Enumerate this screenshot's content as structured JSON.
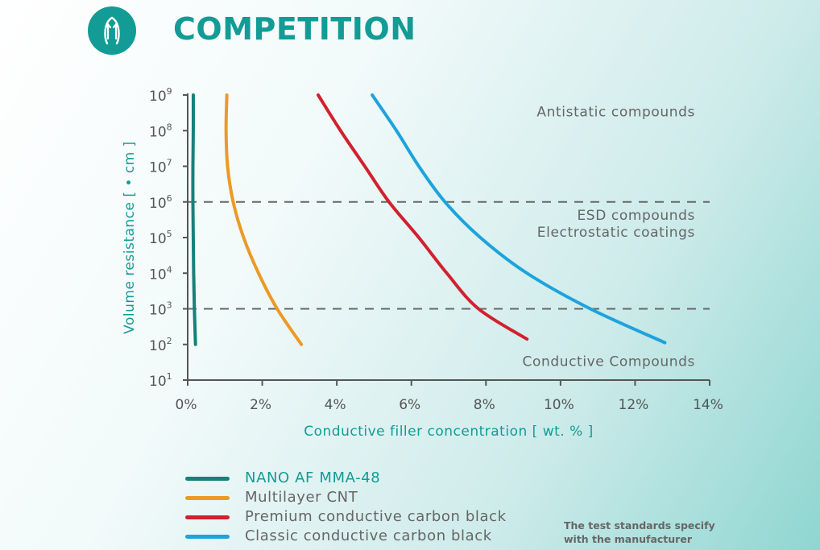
{
  "header": {
    "title": "COMPETITION"
  },
  "note": {
    "lines": [
      "The test standards specify",
      "with the manufacturer"
    ]
  },
  "colors": {
    "accent": "#129c95",
    "axis": "#555555",
    "grid_dash": "#666666",
    "region_text": "#666666"
  },
  "chart_data": {
    "type": "line",
    "title": "",
    "xlabel": "Conductive filler concentration [ wt. % ]",
    "ylabel": "Volume resistance [  • cm ]",
    "xlim": [
      0,
      14
    ],
    "ylim_log10": [
      1,
      9
    ],
    "y_scale": "log",
    "x_ticks": [
      {
        "value": 0,
        "label": "0%"
      },
      {
        "value": 2,
        "label": "2%"
      },
      {
        "value": 4,
        "label": "4%"
      },
      {
        "value": 6,
        "label": "6%"
      },
      {
        "value": 8,
        "label": "8%"
      },
      {
        "value": 10,
        "label": "10%"
      },
      {
        "value": 12,
        "label": "12%"
      },
      {
        "value": 14,
        "label": "14%"
      }
    ],
    "y_ticks": [
      {
        "exp": 1,
        "base": "10",
        "sup": "1"
      },
      {
        "exp": 2,
        "base": "10",
        "sup": "2"
      },
      {
        "exp": 3,
        "base": "10",
        "sup": "3"
      },
      {
        "exp": 4,
        "base": "10",
        "sup": "4"
      },
      {
        "exp": 5,
        "base": "10",
        "sup": "5"
      },
      {
        "exp": 6,
        "base": "10",
        "sup": "6"
      },
      {
        "exp": 7,
        "base": "10",
        "sup": "7"
      },
      {
        "exp": 8,
        "base": "10",
        "sup": "8"
      },
      {
        "exp": 9,
        "base": "10",
        "sup": "9"
      }
    ],
    "thresholds_log10": [
      6,
      3
    ],
    "regions": [
      {
        "lines": [
          "Antistatic compounds"
        ],
        "y_log10": 8.4
      },
      {
        "lines": [
          "ESD compounds",
          "Electrostatic coatings"
        ],
        "y_log10": 5.5
      },
      {
        "lines": [
          "Conductive Compounds"
        ],
        "y_log10": 1.4
      }
    ],
    "series": [
      {
        "name": "NANO AF MMA-48",
        "color": "#16807a",
        "highlight": true,
        "points": [
          [
            0.15,
            9
          ],
          [
            0.15,
            8
          ],
          [
            0.14,
            7
          ],
          [
            0.14,
            6
          ],
          [
            0.15,
            5
          ],
          [
            0.16,
            4
          ],
          [
            0.18,
            3
          ],
          [
            0.21,
            2
          ]
        ]
      },
      {
        "name": "Multilayer CNT",
        "color": "#ec9a24",
        "points": [
          [
            1.05,
            9
          ],
          [
            1.03,
            8
          ],
          [
            1.07,
            7
          ],
          [
            1.22,
            6
          ],
          [
            1.5,
            5
          ],
          [
            1.9,
            4
          ],
          [
            2.4,
            3
          ],
          [
            3.05,
            2
          ]
        ]
      },
      {
        "name": "Premium conductive carbon black",
        "color": "#d3202e",
        "points": [
          [
            3.5,
            9
          ],
          [
            4.1,
            8
          ],
          [
            4.75,
            7
          ],
          [
            5.4,
            6
          ],
          [
            6.2,
            5
          ],
          [
            6.95,
            4
          ],
          [
            7.8,
            3
          ],
          [
            9.1,
            2.15
          ]
        ]
      },
      {
        "name": "Classic conductive carbon black",
        "color": "#1ea3dc",
        "points": [
          [
            4.95,
            9
          ],
          [
            5.6,
            8
          ],
          [
            6.2,
            7
          ],
          [
            6.9,
            6
          ],
          [
            7.85,
            5
          ],
          [
            9.1,
            4
          ],
          [
            10.8,
            3
          ],
          [
            12.8,
            2.05
          ]
        ]
      }
    ]
  }
}
